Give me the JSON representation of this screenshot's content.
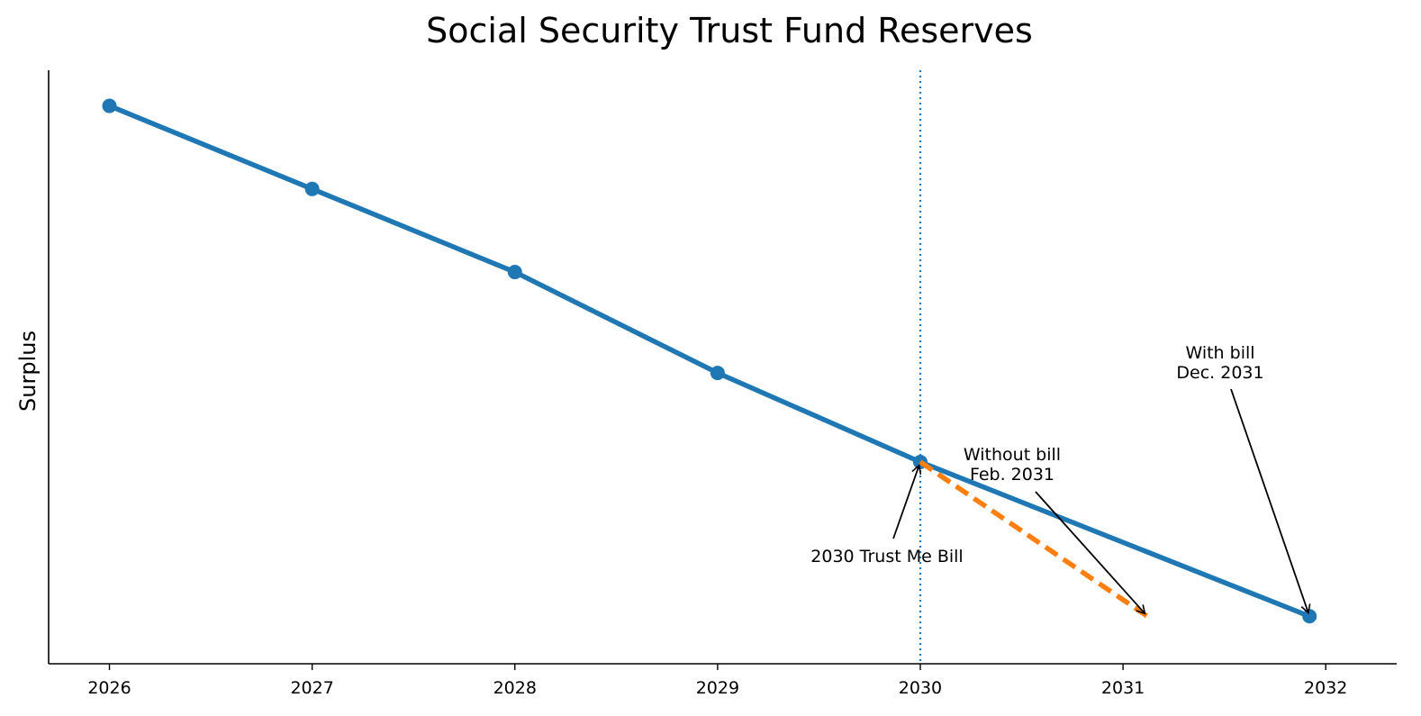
{
  "chart_data": {
    "type": "line",
    "title": "Social Security Trust Fund Reserves",
    "xlabel": "",
    "ylabel": "Surplus",
    "x_ticks": [
      "2026",
      "2027",
      "2028",
      "2029",
      "2030",
      "2031",
      "2032"
    ],
    "xlim": [
      2025.7,
      2032.35
    ],
    "ylim": [
      0.0,
      1.0
    ],
    "y_ticks_shown": false,
    "grid": false,
    "series": [
      {
        "color": "#1f77b4",
        "style": "solid-with-markers",
        "x": [
          2026,
          2027,
          2028,
          2029,
          2030,
          2031.92
        ],
        "y": [
          0.94,
          0.8,
          0.66,
          0.49,
          0.34,
          0.08
        ]
      },
      {
        "color": "#ff7f0e",
        "style": "dashed",
        "x": [
          2030,
          2031.12
        ],
        "y": [
          0.34,
          0.08
        ]
      }
    ],
    "reference_lines": [
      {
        "orientation": "vertical",
        "x": 2030,
        "color": "#1f77b4",
        "style": "dotted"
      }
    ],
    "annotations": [
      {
        "lines": [
          "2030 Trust Me Bill"
        ],
        "target": {
          "x": 2030,
          "y": 0.34
        }
      },
      {
        "lines": [
          "Without bill",
          "Feb. 2031"
        ],
        "target": {
          "x": 2031.12,
          "y": 0.08
        }
      },
      {
        "lines": [
          "With bill",
          "Dec. 2031"
        ],
        "target": {
          "x": 2031.92,
          "y": 0.08
        }
      }
    ]
  }
}
